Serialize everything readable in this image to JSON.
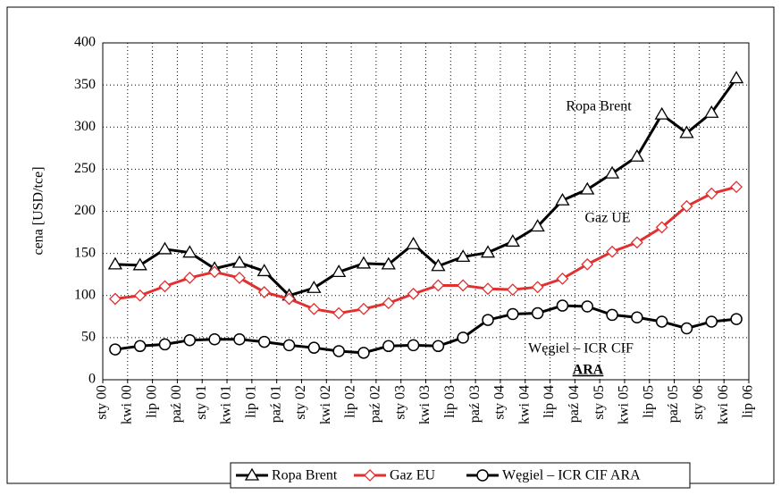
{
  "chart_data": {
    "type": "line",
    "y_label": "cena  [USD/tce]",
    "categories": [
      "sty 00",
      "kwi 00",
      "lip 00",
      "paź 00",
      "sty 01",
      "kwi 01",
      "lip 01",
      "paź 01",
      "sty 02",
      "kwi 02",
      "lip 02",
      "paź 02",
      "sty 03",
      "kwi 03",
      "lip 03",
      "paź 03",
      "sty 04",
      "kwi 04",
      "lip 04",
      "paź 04",
      "sty 05",
      "kwi 05",
      "lip 05",
      "paź 05",
      "sty 06",
      "kwi 06",
      "lip 06"
    ],
    "series": [
      {
        "name": "Ropa Brent",
        "color": "#000000",
        "marker": "triangle",
        "values": [
          137,
          136,
          155,
          151,
          132,
          139,
          129,
          100,
          109,
          128,
          138,
          137,
          161,
          135,
          146,
          151,
          164,
          182,
          213,
          226,
          245,
          265,
          315,
          293,
          317,
          358,
          null
        ]
      },
      {
        "name": "Gaz EU",
        "color": "#e03030",
        "marker": "diamond",
        "values": [
          96,
          100,
          111,
          121,
          128,
          121,
          104,
          96,
          84,
          79,
          84,
          91,
          102,
          112,
          112,
          108,
          107,
          110,
          120,
          137,
          152,
          163,
          181,
          206,
          221,
          229,
          null
        ]
      },
      {
        "name": "Węgiel – ICR CIF ARA",
        "color": "#000000",
        "marker": "circle",
        "values": [
          36,
          40,
          42,
          47,
          48,
          48,
          45,
          41,
          38,
          34,
          32,
          40,
          41,
          40,
          50,
          71,
          78,
          79,
          88,
          87,
          77,
          74,
          69,
          61,
          69,
          72,
          null
        ]
      }
    ],
    "annotations": [
      "Ropa Brent",
      "Gaz UE",
      "Węgiel – ICR CIF",
      "ARA"
    ],
    "ylim": [
      0,
      400
    ],
    "yticks": [
      0,
      50,
      100,
      150,
      200,
      250,
      300,
      350,
      400
    ],
    "grid": true
  }
}
